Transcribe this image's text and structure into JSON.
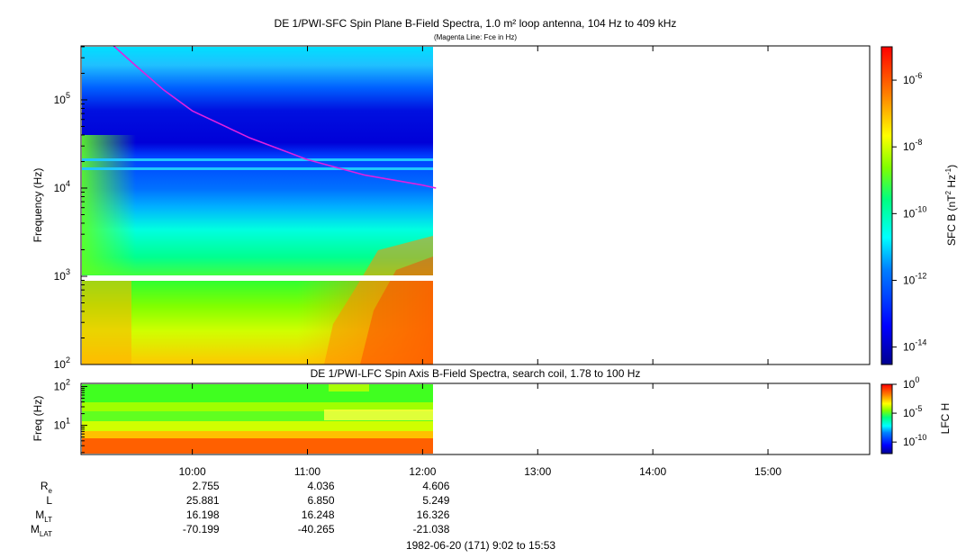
{
  "figure": {
    "main_title": "DE 1/PWI-SFC  Spin Plane B-Field Spectra, 1.0 m² loop antenna, 104 Hz to 409 kHz",
    "main_subtitle": "(Magenta Line: Fce in Hz)",
    "footer": "1982-06-20 (171) 9:02 to 15:53"
  },
  "chart_data": [
    {
      "type": "heatmap",
      "title": "DE 1/PWI-SFC  Spin Plane B-Field Spectra, 1.0 m² loop antenna, 104 Hz to 409 kHz",
      "subtitle": "(Magenta Line: Fce in Hz)",
      "xlabel": "",
      "ylabel": "Frequency (Hz)",
      "y_scale": "log",
      "xlim": [
        "09:02",
        "15:53"
      ],
      "data_end": "12:07",
      "ylim": [
        100,
        409000
      ],
      "x_ticks": [
        "10:00",
        "11:00",
        "12:00",
        "13:00",
        "14:00",
        "15:00"
      ],
      "y_ticks": [
        {
          "value": 100,
          "base": "10",
          "exp": "2"
        },
        {
          "value": 1000,
          "base": "10",
          "exp": "3"
        },
        {
          "value": 10000,
          "base": "10",
          "exp": "4"
        },
        {
          "value": 100000,
          "base": "10",
          "exp": "5"
        }
      ],
      "colorbar": {
        "label": "SFC B (nT² Hz⁻¹)",
        "label_parts": [
          "SFC B (nT",
          "2",
          " Hz",
          "-1",
          ")"
        ],
        "scale": "log",
        "range": [
          3e-15,
          1e-05
        ],
        "ticks": [
          {
            "value": 1e-06,
            "base": "10",
            "exp": "-6"
          },
          {
            "value": 1e-08,
            "base": "10",
            "exp": "-8"
          },
          {
            "value": 1e-10,
            "base": "10",
            "exp": "-10"
          },
          {
            "value": 1e-12,
            "base": "10",
            "exp": "-12"
          },
          {
            "value": 1e-14,
            "base": "10",
            "exp": "-14"
          }
        ]
      },
      "fce_line": {
        "color": "#e020e0",
        "x": [
          "09:19",
          "09:30",
          "09:45",
          "10:00",
          "10:30",
          "11:00",
          "11:30",
          "12:00",
          "12:07"
        ],
        "y": [
          409000,
          250000,
          130000,
          75000,
          37000,
          21000,
          14000,
          10800,
          10000
        ]
      }
    },
    {
      "type": "heatmap",
      "title": "DE 1/PWI-LFC  Spin Axis B-Field Spectra, search coil, 1.78 to 100 Hz",
      "xlabel": "",
      "ylabel": "Freq (Hz)",
      "y_scale": "log",
      "xlim": [
        "09:02",
        "15:53"
      ],
      "data_end": "12:07",
      "ylim": [
        1.78,
        120
      ],
      "y_ticks": [
        {
          "value": 10,
          "base": "10",
          "exp": "1"
        },
        {
          "value": 100,
          "base": "10",
          "exp": "2"
        }
      ],
      "colorbar": {
        "label": "LFC H",
        "scale": "log",
        "range": [
          1e-12,
          1
        ],
        "ticks": [
          {
            "value": 1,
            "base": "10",
            "exp": "0"
          },
          {
            "value": 1e-05,
            "base": "10",
            "exp": "-5"
          },
          {
            "value": 1e-10,
            "base": "10",
            "exp": "-10"
          }
        ]
      }
    }
  ],
  "ephemeris": {
    "labels": [
      {
        "main": "R",
        "sub": "e"
      },
      {
        "main": "L",
        "sub": ""
      },
      {
        "main": "M",
        "sub": "LT"
      },
      {
        "main": "M",
        "sub": "LAT"
      }
    ],
    "times": [
      "10:00",
      "11:00",
      "12:00"
    ],
    "rows": [
      [
        "2.755",
        "4.036",
        "4.606"
      ],
      [
        "25.881",
        "6.850",
        "5.249"
      ],
      [
        "16.198",
        "16.248",
        "16.326"
      ],
      [
        "-70.199",
        "-40.265",
        "-21.038"
      ]
    ]
  },
  "colors": {
    "fce_line": "#e020e0",
    "colormap": [
      "#00008f",
      "#0000ff",
      "#0080ff",
      "#00ffff",
      "#00ff80",
      "#80ff00",
      "#ffff00",
      "#ff8000",
      "#ff0000"
    ]
  }
}
